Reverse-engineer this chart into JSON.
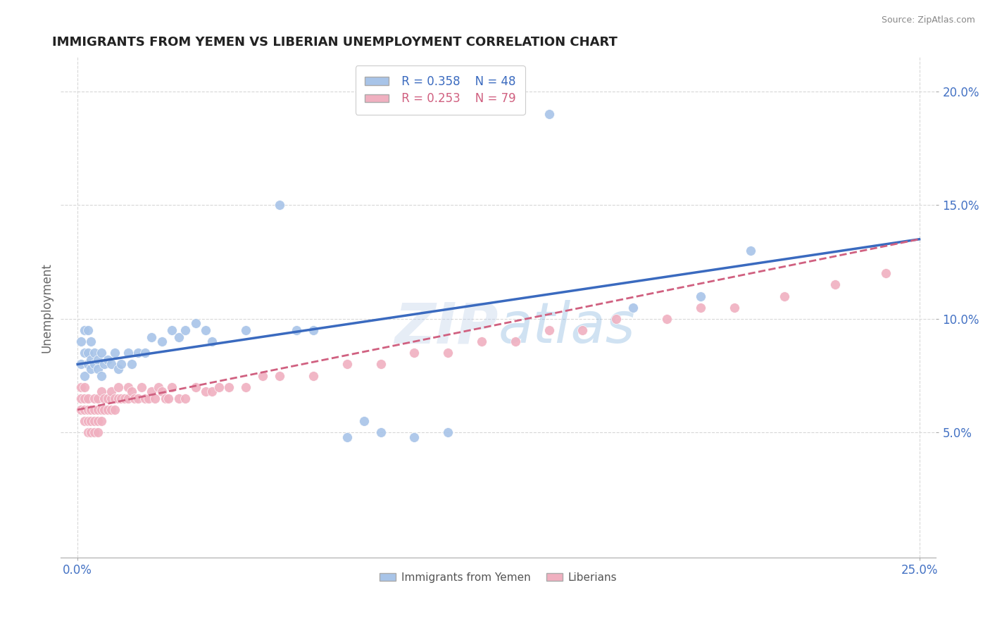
{
  "title": "IMMIGRANTS FROM YEMEN VS LIBERIAN UNEMPLOYMENT CORRELATION CHART",
  "source": "Source: ZipAtlas.com",
  "ylabel": "Unemployment",
  "xlim": [
    -0.005,
    0.255
  ],
  "ylim": [
    -0.005,
    0.215
  ],
  "xtick_positions": [
    0.0,
    0.25
  ],
  "xticklabels": [
    "0.0%",
    "25.0%"
  ],
  "ytick_positions": [
    0.05,
    0.1,
    0.15,
    0.2
  ],
  "yticklabels": [
    "5.0%",
    "10.0%",
    "15.0%",
    "20.0%"
  ],
  "legend1_r": "0.358",
  "legend1_n": "48",
  "legend2_r": "0.253",
  "legend2_n": "79",
  "color_yemen": "#a8c4e8",
  "color_liberia": "#f0b0c0",
  "color_trendline_yemen": "#3a6abf",
  "color_trendline_liberia": "#d06080",
  "watermark": "ZIPatlas",
  "background_color": "#ffffff",
  "grid_color": "#d8d8d8",
  "yemen_x": [
    0.001,
    0.001,
    0.002,
    0.002,
    0.002,
    0.003,
    0.003,
    0.003,
    0.004,
    0.004,
    0.004,
    0.005,
    0.005,
    0.006,
    0.006,
    0.007,
    0.007,
    0.008,
    0.009,
    0.01,
    0.011,
    0.012,
    0.013,
    0.015,
    0.016,
    0.018,
    0.02,
    0.022,
    0.025,
    0.028,
    0.03,
    0.032,
    0.035,
    0.038,
    0.04,
    0.05,
    0.06,
    0.065,
    0.07,
    0.08,
    0.085,
    0.09,
    0.1,
    0.11,
    0.14,
    0.165,
    0.185,
    0.2
  ],
  "yemen_y": [
    0.08,
    0.09,
    0.085,
    0.075,
    0.095,
    0.08,
    0.085,
    0.095,
    0.082,
    0.09,
    0.078,
    0.08,
    0.085,
    0.082,
    0.078,
    0.085,
    0.075,
    0.08,
    0.082,
    0.08,
    0.085,
    0.078,
    0.08,
    0.085,
    0.08,
    0.085,
    0.085,
    0.092,
    0.09,
    0.095,
    0.092,
    0.095,
    0.098,
    0.095,
    0.09,
    0.095,
    0.15,
    0.095,
    0.095,
    0.048,
    0.055,
    0.05,
    0.048,
    0.05,
    0.19,
    0.105,
    0.11,
    0.13
  ],
  "liberia_x": [
    0.001,
    0.001,
    0.001,
    0.002,
    0.002,
    0.002,
    0.002,
    0.003,
    0.003,
    0.003,
    0.003,
    0.004,
    0.004,
    0.004,
    0.005,
    0.005,
    0.005,
    0.005,
    0.006,
    0.006,
    0.006,
    0.006,
    0.007,
    0.007,
    0.007,
    0.008,
    0.008,
    0.009,
    0.009,
    0.01,
    0.01,
    0.01,
    0.011,
    0.011,
    0.012,
    0.012,
    0.013,
    0.014,
    0.015,
    0.015,
    0.016,
    0.017,
    0.018,
    0.019,
    0.02,
    0.021,
    0.022,
    0.023,
    0.024,
    0.025,
    0.026,
    0.027,
    0.028,
    0.03,
    0.032,
    0.035,
    0.038,
    0.04,
    0.042,
    0.045,
    0.05,
    0.055,
    0.06,
    0.07,
    0.08,
    0.09,
    0.1,
    0.11,
    0.12,
    0.13,
    0.14,
    0.15,
    0.16,
    0.175,
    0.185,
    0.195,
    0.21,
    0.225,
    0.24
  ],
  "liberia_y": [
    0.06,
    0.065,
    0.07,
    0.055,
    0.06,
    0.065,
    0.07,
    0.05,
    0.055,
    0.06,
    0.065,
    0.05,
    0.055,
    0.06,
    0.05,
    0.055,
    0.06,
    0.065,
    0.05,
    0.055,
    0.06,
    0.065,
    0.055,
    0.06,
    0.068,
    0.06,
    0.065,
    0.06,
    0.065,
    0.06,
    0.065,
    0.068,
    0.06,
    0.065,
    0.065,
    0.07,
    0.065,
    0.065,
    0.065,
    0.07,
    0.068,
    0.065,
    0.065,
    0.07,
    0.065,
    0.065,
    0.068,
    0.065,
    0.07,
    0.068,
    0.065,
    0.065,
    0.07,
    0.065,
    0.065,
    0.07,
    0.068,
    0.068,
    0.07,
    0.07,
    0.07,
    0.075,
    0.075,
    0.075,
    0.08,
    0.08,
    0.085,
    0.085,
    0.09,
    0.09,
    0.095,
    0.095,
    0.1,
    0.1,
    0.105,
    0.105,
    0.11,
    0.115,
    0.12
  ],
  "trendline_yemen_x0": 0.0,
  "trendline_yemen_x1": 0.25,
  "trendline_yemen_y0": 0.08,
  "trendline_yemen_y1": 0.135,
  "trendline_liberia_x0": 0.0,
  "trendline_liberia_x1": 0.25,
  "trendline_liberia_y0": 0.06,
  "trendline_liberia_y1": 0.135
}
